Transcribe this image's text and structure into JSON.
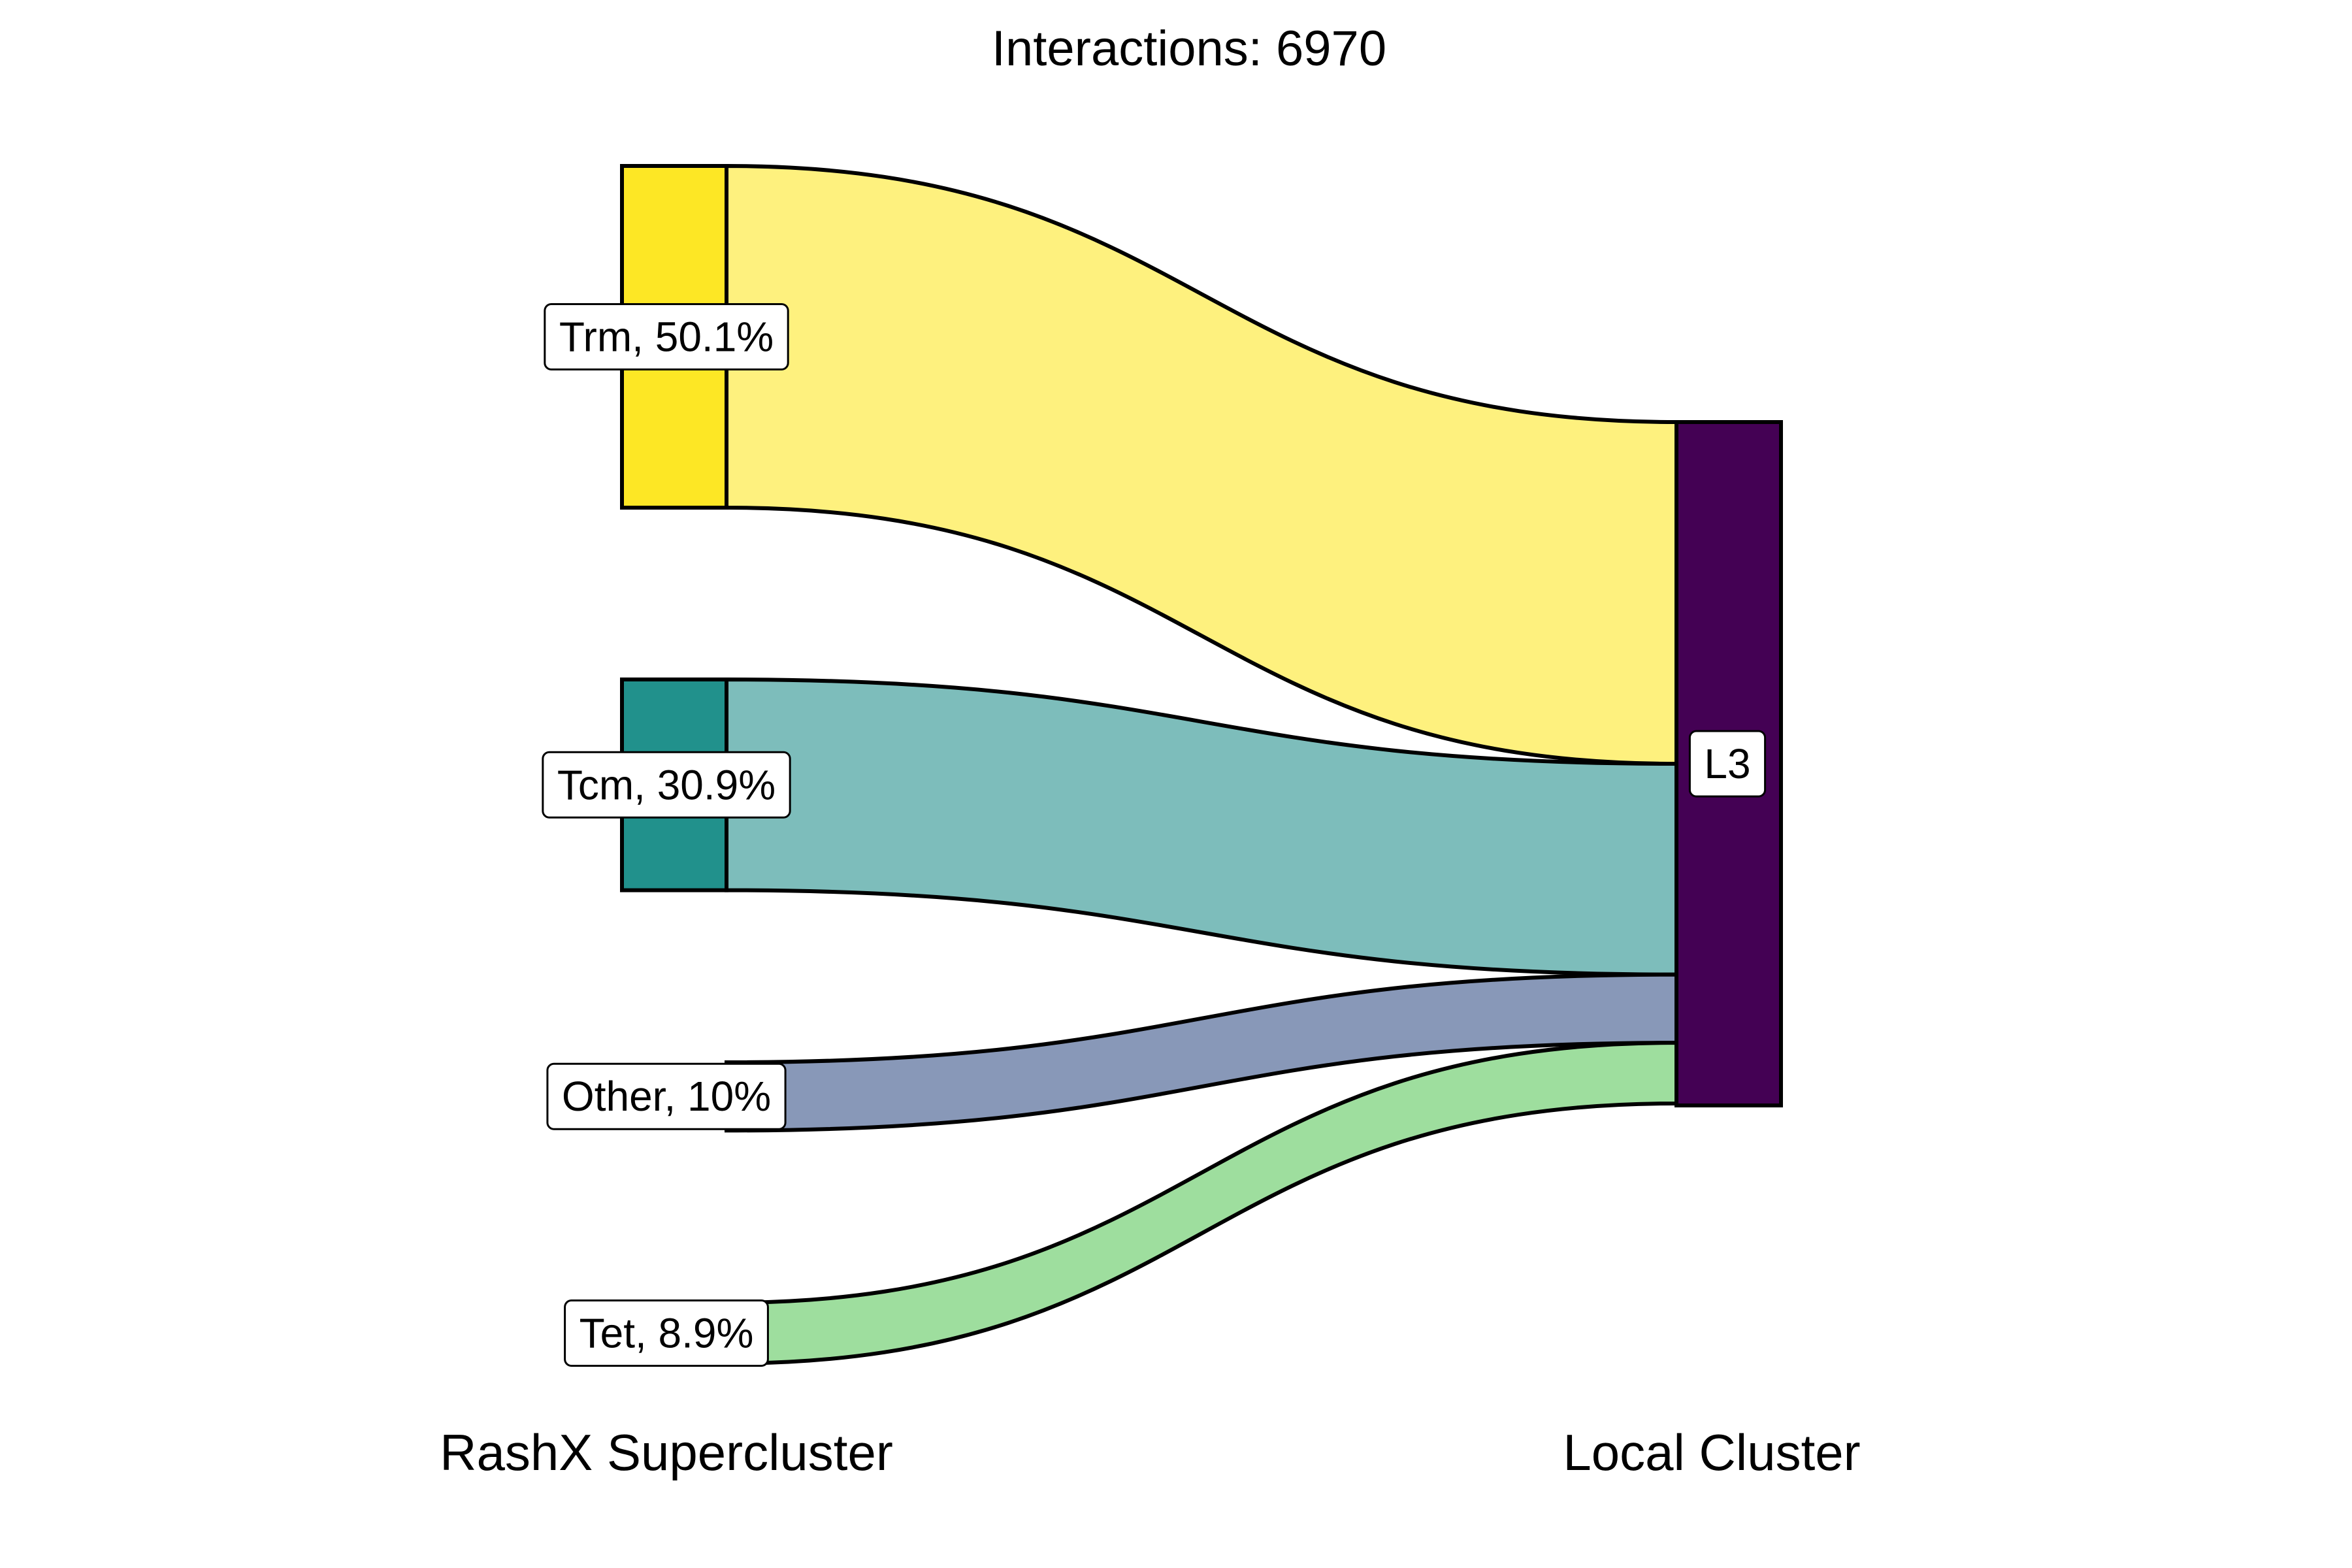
{
  "title": "Interactions: 6970",
  "source_axis_label": "RashX Supercluster",
  "target_axis_label": "Local Cluster",
  "sources": [
    {
      "id": "trm",
      "name": "Trm",
      "percent": 50.1,
      "label": "Trm, 50.1%",
      "node_color": "#FDE725",
      "flow_color": "#FEF17E",
      "has_bar": true
    },
    {
      "id": "tcm",
      "name": "Tcm",
      "percent": 30.9,
      "label": "Tcm, 30.9%",
      "node_color": "#21918C",
      "flow_color": "#7DBDBB",
      "has_bar": true
    },
    {
      "id": "other",
      "name": "Other",
      "percent": 10.0,
      "label": "Other, 10%",
      "node_color": "#8898B8",
      "flow_color": "#8898B8",
      "has_bar": false
    },
    {
      "id": "tet",
      "name": "Tet",
      "percent": 8.9,
      "label": "Tet, 8.9%",
      "node_color": "#9EDE9E",
      "flow_color": "#9EDE9E",
      "has_bar": false
    }
  ],
  "target": {
    "id": "l3",
    "name": "L3",
    "label": "L3",
    "node_color": "#440154"
  }
}
